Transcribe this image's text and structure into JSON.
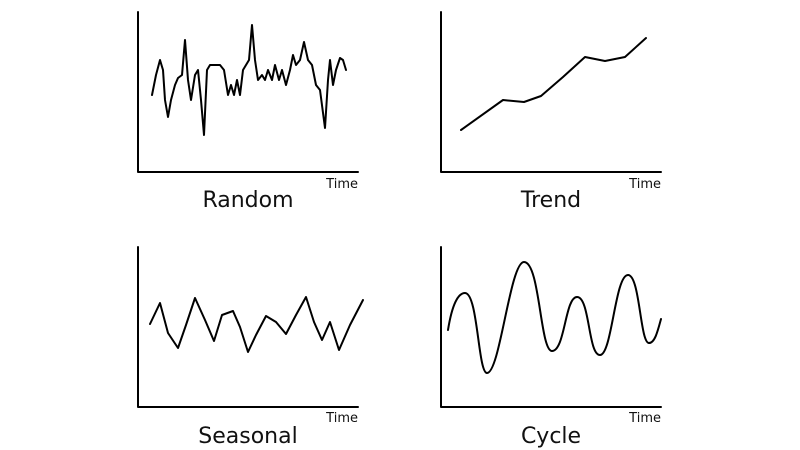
{
  "panels": [
    {
      "title": "Random",
      "axis_label": "Time"
    },
    {
      "title": "Trend",
      "axis_label": "Time"
    },
    {
      "title": "Seasonal",
      "axis_label": "Time"
    },
    {
      "title": "Cycle",
      "axis_label": "Time"
    }
  ]
}
